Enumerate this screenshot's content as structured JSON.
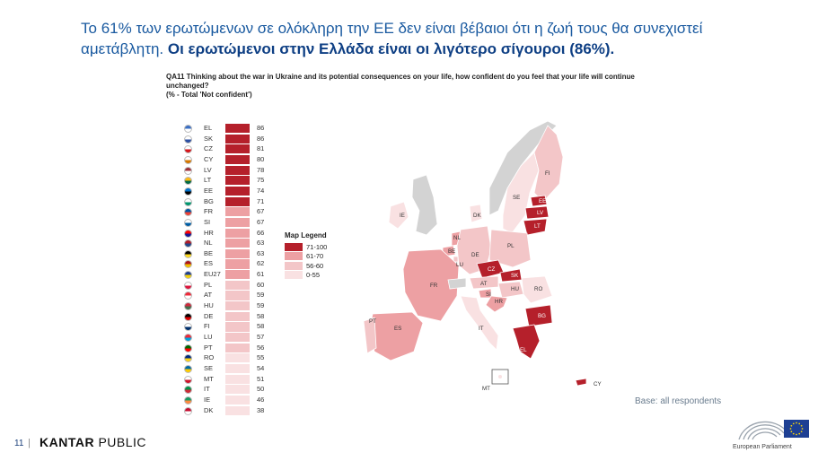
{
  "headline": {
    "normal": "Το 61% των ερωτώμενων σε ολόκληρη την ΕΕ δεν είναι βέβαιοι ότι η ζωή τους θα συνεχιστεί αμετάβλητη. ",
    "bold": "Οι ερωτώμενοι στην Ελλάδα είναι οι λιγότερο σίγουροι (86%)."
  },
  "question": "QA11 Thinking about the war in Ukraine and its potential consequences on your life, how confident do you feel that your life will continue unchanged?",
  "subquestion": "(% - Total 'Not confident')",
  "chart_data": {
    "type": "bar",
    "categories": [
      "EL",
      "SK",
      "CZ",
      "CY",
      "LV",
      "LT",
      "EE",
      "BG",
      "FR",
      "SI",
      "HR",
      "NL",
      "BE",
      "ES",
      "EU27",
      "PL",
      "AT",
      "HU",
      "DE",
      "FI",
      "LU",
      "PT",
      "RO",
      "SE",
      "MT",
      "IT",
      "IE",
      "DK"
    ],
    "values": [
      86,
      86,
      81,
      80,
      78,
      75,
      74,
      71,
      67,
      67,
      66,
      63,
      63,
      62,
      61,
      60,
      59,
      59,
      58,
      58,
      57,
      56,
      55,
      54,
      51,
      50,
      46,
      38
    ],
    "xlabel": "",
    "ylabel": "",
    "bins": [
      {
        "label": "71-100",
        "min": 71,
        "max": 100,
        "color": "#b5202b"
      },
      {
        "label": "61-70",
        "min": 61,
        "max": 70,
        "color": "#eda0a3"
      },
      {
        "label": "56-60",
        "min": 56,
        "max": 60,
        "color": "#f3c6c8"
      },
      {
        "label": "0-55",
        "min": 0,
        "max": 55,
        "color": "#f9e1e2"
      }
    ]
  },
  "legend": {
    "title": "Map Legend",
    "items": [
      "71-100",
      "61-70",
      "56-60",
      "0-55"
    ]
  },
  "map": {
    "labels": [
      "FI",
      "SE",
      "EE",
      "LV",
      "LT",
      "IE",
      "DK",
      "NL",
      "BE",
      "DE",
      "PL",
      "LU",
      "FR",
      "CZ",
      "SK",
      "AT",
      "HU",
      "SI",
      "HR",
      "RO",
      "PT",
      "ES",
      "IT",
      "BG",
      "EL",
      "MT",
      "CY"
    ]
  },
  "base_note": "Base: all respondents",
  "footer": {
    "page_number": "11",
    "separator": "|",
    "brand_bold": "KANTAR",
    "brand_light": " PUBLIC",
    "ep_label": "European Parliament"
  },
  "colors": {
    "headline": "#1a5aa0",
    "headline_bold": "#0e3f84",
    "non_eu": "#d3d3d3"
  }
}
